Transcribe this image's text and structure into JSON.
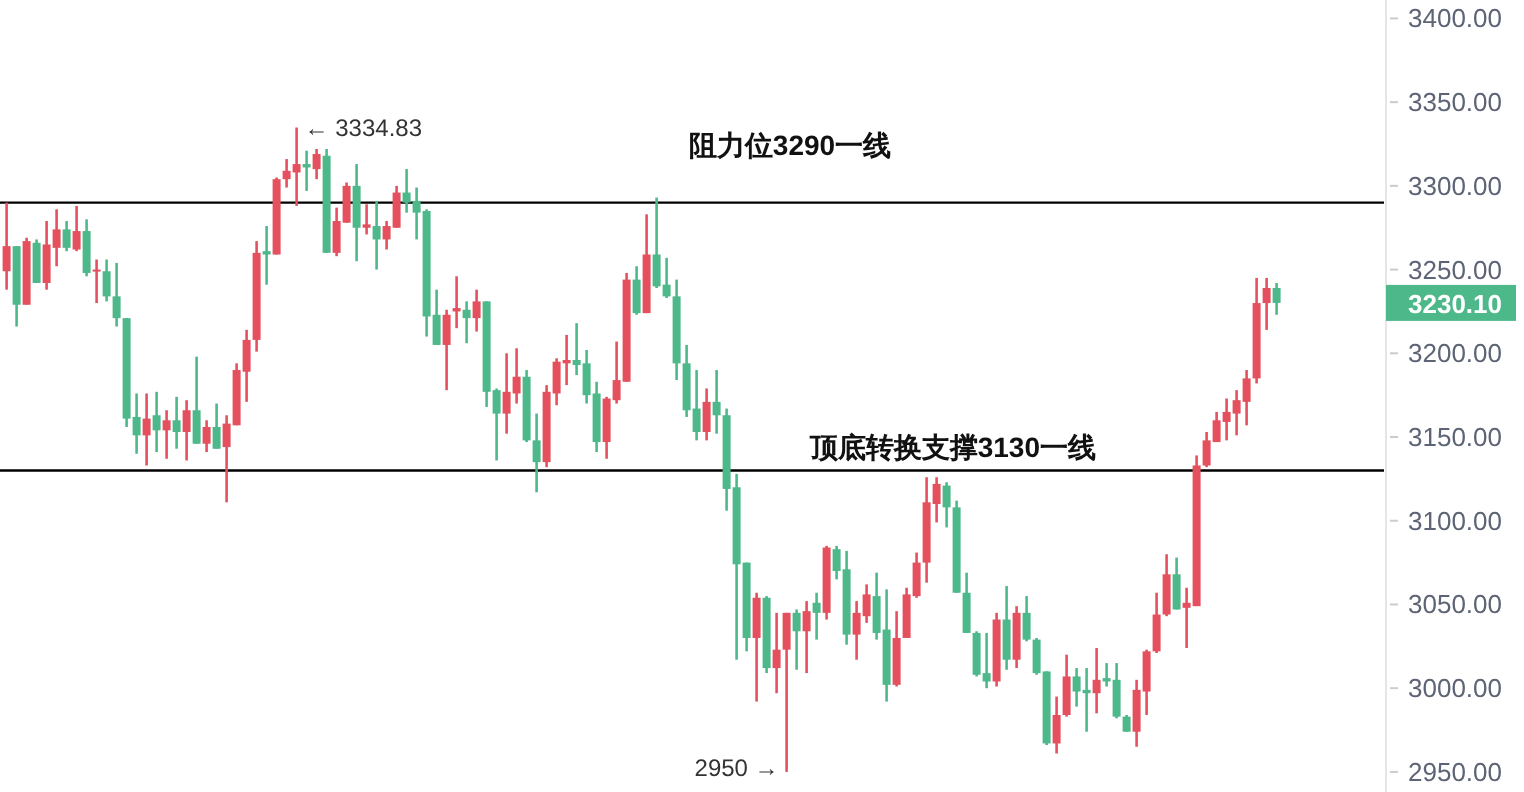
{
  "chart_data": {
    "type": "candlestick",
    "categories": [
      null,
      null,
      null,
      null,
      null,
      null,
      null,
      null,
      null,
      null,
      null,
      null,
      null,
      null,
      null,
      null,
      null,
      null,
      null,
      null,
      null,
      null,
      null,
      null,
      null,
      null,
      null,
      null,
      null,
      null,
      null,
      null,
      null,
      null,
      null,
      null,
      null,
      null,
      null,
      null,
      null,
      null,
      null,
      null,
      null,
      null,
      null,
      null,
      null,
      null,
      null,
      null,
      null,
      null,
      null,
      null,
      null,
      null,
      null,
      null,
      null,
      null,
      null,
      null,
      null,
      null,
      null,
      null,
      null,
      null,
      null,
      null,
      null,
      null,
      null,
      null,
      null,
      null,
      null,
      null,
      null,
      null,
      null,
      null,
      null,
      null,
      null,
      null,
      null,
      null,
      null,
      null,
      null,
      null,
      null,
      null,
      null,
      null,
      null,
      null,
      null,
      null,
      null,
      null,
      null,
      null,
      null,
      null,
      null,
      null,
      null,
      null,
      null,
      null,
      null,
      null,
      null,
      null,
      null,
      null,
      null,
      null,
      null,
      null,
      null,
      null,
      null,
      null
    ],
    "ohlc": [
      [
        3249,
        3290,
        3238,
        3264
      ],
      [
        3264,
        3264,
        3216,
        3229
      ],
      [
        3229,
        3269,
        3229,
        3267
      ],
      [
        3266,
        3268,
        3242,
        3242
      ],
      [
        3242,
        3279,
        3238,
        3265
      ],
      [
        3263,
        3286,
        3252,
        3274
      ],
      [
        3274,
        3279,
        3261,
        3263
      ],
      [
        3262,
        3288,
        3261,
        3273
      ],
      [
        3273,
        3280,
        3246,
        3248
      ],
      [
        3249,
        3256,
        3230,
        3250
      ],
      [
        3249,
        3256,
        3231,
        3234
      ],
      [
        3234,
        3254,
        3216,
        3221
      ],
      [
        3221,
        3221,
        3156,
        3161
      ],
      [
        3162,
        3176,
        3140,
        3151
      ],
      [
        3151,
        3176,
        3133,
        3161
      ],
      [
        3163,
        3177,
        3141,
        3154
      ],
      [
        3154,
        3166,
        3137,
        3160
      ],
      [
        3160,
        3174,
        3143,
        3153
      ],
      [
        3153,
        3172,
        3136,
        3166
      ],
      [
        3166,
        3198,
        3146,
        3146
      ],
      [
        3146,
        3160,
        3141,
        3156
      ],
      [
        3156,
        3170,
        3143,
        3143
      ],
      [
        3144,
        3163,
        3111,
        3158
      ],
      [
        3157,
        3194,
        3157,
        3190
      ],
      [
        3189,
        3214,
        3171,
        3208
      ],
      [
        3208,
        3267,
        3201,
        3260
      ],
      [
        3261,
        3276,
        3241,
        3259
      ],
      [
        3259,
        3305,
        3259,
        3304
      ],
      [
        3304,
        3316,
        3299,
        3309
      ],
      [
        3308,
        3334.83,
        3288,
        3313
      ],
      [
        3313,
        3321,
        3297,
        3311
      ],
      [
        3310,
        3322,
        3304,
        3319
      ],
      [
        3318,
        3322,
        3260,
        3260
      ],
      [
        3260,
        3287,
        3258,
        3279
      ],
      [
        3278,
        3302,
        3278,
        3300
      ],
      [
        3300,
        3313,
        3255,
        3275
      ],
      [
        3275,
        3289,
        3271,
        3277
      ],
      [
        3276,
        3291,
        3250,
        3268
      ],
      [
        3268,
        3279,
        3262,
        3276
      ],
      [
        3275,
        3300,
        3275,
        3296
      ],
      [
        3296,
        3310,
        3284,
        3290
      ],
      [
        3291,
        3299,
        3268,
        3284
      ],
      [
        3285,
        3286,
        3210,
        3222
      ],
      [
        3223,
        3238,
        3205,
        3205
      ],
      [
        3205,
        3226,
        3178,
        3223
      ],
      [
        3225,
        3246,
        3215,
        3227
      ],
      [
        3226,
        3231,
        3206,
        3221
      ],
      [
        3221,
        3238,
        3213,
        3231
      ],
      [
        3231,
        3231,
        3168,
        3177
      ],
      [
        3178,
        3179,
        3136,
        3164
      ],
      [
        3164,
        3200,
        3152,
        3177
      ],
      [
        3176,
        3203,
        3170,
        3186
      ],
      [
        3186,
        3190,
        3147,
        3148
      ],
      [
        3148,
        3164,
        3117,
        3135
      ],
      [
        3135,
        3181,
        3132,
        3177
      ],
      [
        3176,
        3197,
        3169,
        3195
      ],
      [
        3194,
        3211,
        3181,
        3196
      ],
      [
        3196,
        3218,
        3187,
        3193
      ],
      [
        3194,
        3202,
        3170,
        3175
      ],
      [
        3176,
        3183,
        3141,
        3147
      ],
      [
        3147,
        3174,
        3137,
        3173
      ],
      [
        3172,
        3207,
        3170,
        3184
      ],
      [
        3183,
        3248,
        3183,
        3244
      ],
      [
        3244,
        3252,
        3223,
        3224
      ],
      [
        3224,
        3283,
        3224,
        3259
      ],
      [
        3259,
        3293,
        3239,
        3240
      ],
      [
        3241,
        3257,
        3233,
        3234
      ],
      [
        3234,
        3244,
        3184,
        3194
      ],
      [
        3194,
        3205,
        3162,
        3166
      ],
      [
        3167,
        3190,
        3148,
        3153
      ],
      [
        3153,
        3179,
        3148,
        3171
      ],
      [
        3171,
        3190,
        3152,
        3163
      ],
      [
        3163,
        3167,
        3106,
        3119
      ],
      [
        3120,
        3128,
        3017,
        3074
      ],
      [
        3075,
        3075,
        3022,
        3030
      ],
      [
        3030,
        3057,
        2992,
        3054
      ],
      [
        3054,
        3055,
        3009,
        3012
      ],
      [
        3012,
        3045,
        2997,
        3023
      ],
      [
        3023,
        3045,
        2950,
        3045
      ],
      [
        3045,
        3047,
        3011,
        3034
      ],
      [
        3034,
        3052,
        3009,
        3046
      ],
      [
        3051,
        3057,
        3029,
        3045
      ],
      [
        3045,
        3085,
        3041,
        3084
      ],
      [
        3083,
        3085,
        3065,
        3070
      ],
      [
        3071,
        3082,
        3026,
        3032
      ],
      [
        3032,
        3052,
        3017,
        3045
      ],
      [
        3043,
        3062,
        3039,
        3056
      ],
      [
        3055,
        3069,
        3029,
        3033
      ],
      [
        3035,
        3059,
        2992,
        3002
      ],
      [
        3002,
        3046,
        3001,
        3030
      ],
      [
        3030,
        3060,
        3030,
        3056
      ],
      [
        3055,
        3081,
        3054,
        3075
      ],
      [
        3075,
        3126,
        3063,
        3111
      ],
      [
        3110,
        3126,
        3099,
        3122
      ],
      [
        3121,
        3123,
        3096,
        3108
      ],
      [
        3108,
        3112,
        3057,
        3057
      ],
      [
        3057,
        3069,
        3033,
        3033
      ],
      [
        3033,
        3034,
        3007,
        3008
      ],
      [
        3009,
        3033,
        3000,
        3004
      ],
      [
        3004,
        3045,
        3001,
        3041
      ],
      [
        3041,
        3061,
        3011,
        3017
      ],
      [
        3017,
        3049,
        3012,
        3045
      ],
      [
        3045,
        3055,
        3028,
        3029
      ],
      [
        3029,
        3030,
        3008,
        3009
      ],
      [
        3010,
        3010,
        2966,
        2967
      ],
      [
        2967,
        2995,
        2961,
        2984
      ],
      [
        2984,
        3020,
        2983,
        3007
      ],
      [
        3007,
        3012,
        2989,
        2998
      ],
      [
        2999,
        3012,
        2974,
        2997
      ],
      [
        2997,
        3024,
        2985,
        3005
      ],
      [
        3006,
        3015,
        3001,
        3004
      ],
      [
        3005,
        3015,
        2982,
        2983
      ],
      [
        2983,
        2984,
        2974,
        2974
      ],
      [
        2974,
        3005,
        2965,
        2999
      ],
      [
        2998,
        3023,
        2984,
        3022
      ],
      [
        3022,
        3057,
        3021,
        3044
      ],
      [
        3044,
        3080,
        3043,
        3068
      ],
      [
        3068,
        3078,
        3047,
        3047
      ],
      [
        3048,
        3060,
        3024,
        3051
      ],
      [
        3049,
        3139,
        3049,
        3133
      ],
      [
        3133,
        3153,
        3132,
        3148
      ],
      [
        3147,
        3165,
        3147,
        3160
      ],
      [
        3159,
        3173,
        3148,
        3165
      ],
      [
        3164,
        3178,
        3151,
        3172
      ],
      [
        3171,
        3190,
        3157,
        3185
      ],
      [
        3185,
        3245,
        3182,
        3230
      ],
      [
        3230,
        3245,
        3214,
        3239
      ],
      [
        3239,
        3242,
        3223,
        3230.1
      ]
    ],
    "colors": [
      "#e5505e",
      "#4db88a",
      "#e5505e",
      "#4db88a",
      "#e5505e",
      "#e5505e",
      "#4db88a",
      "#e5505e",
      "#4db88a",
      "#e5505e",
      "#4db88a",
      "#4db88a",
      "#4db88a",
      "#4db88a",
      "#e5505e",
      "#4db88a",
      "#e5505e",
      "#4db88a",
      "#e5505e",
      "#4db88a",
      "#e5505e",
      "#4db88a",
      "#e5505e",
      "#e5505e",
      "#e5505e",
      "#e5505e",
      "#4db88a",
      "#e5505e",
      "#e5505e",
      "#e5505e",
      "#4db88a",
      "#e5505e",
      "#4db88a",
      "#e5505e",
      "#e5505e",
      "#4db88a",
      "#e5505e",
      "#4db88a",
      "#e5505e",
      "#e5505e",
      "#4db88a",
      "#4db88a",
      "#4db88a",
      "#4db88a",
      "#e5505e",
      "#e5505e",
      "#4db88a",
      "#e5505e",
      "#4db88a",
      "#4db88a",
      "#e5505e",
      "#e5505e",
      "#4db88a",
      "#4db88a",
      "#e5505e",
      "#e5505e",
      "#e5505e",
      "#4db88a",
      "#4db88a",
      "#4db88a",
      "#e5505e",
      "#e5505e",
      "#e5505e",
      "#4db88a",
      "#e5505e",
      "#4db88a",
      "#4db88a",
      "#4db88a",
      "#4db88a",
      "#4db88a",
      "#e5505e",
      "#4db88a",
      "#4db88a",
      "#4db88a",
      "#4db88a",
      "#e5505e",
      "#4db88a",
      "#e5505e",
      "#e5505e",
      "#4db88a",
      "#e5505e",
      "#4db88a",
      "#e5505e",
      "#4db88a",
      "#4db88a",
      "#e5505e",
      "#e5505e",
      "#4db88a",
      "#4db88a",
      "#e5505e",
      "#e5505e",
      "#e5505e",
      "#e5505e",
      "#e5505e",
      "#4db88a",
      "#4db88a",
      "#4db88a",
      "#4db88a",
      "#4db88a",
      "#e5505e",
      "#4db88a",
      "#e5505e",
      "#4db88a",
      "#4db88a",
      "#4db88a",
      "#e5505e",
      "#e5505e",
      "#4db88a",
      "#4db88a",
      "#e5505e",
      "#4db88a",
      "#4db88a",
      "#4db88a",
      "#e5505e",
      "#e5505e",
      "#e5505e",
      "#e5505e",
      "#4db88a",
      "#e5505e",
      "#e5505e",
      "#e5505e",
      "#e5505e",
      "#e5505e",
      "#e5505e",
      "#e5505e",
      "#e5505e",
      "#e5505e",
      "#4db88a"
    ],
    "ylim": [
      2938,
      3411
    ],
    "yticks": [
      {
        "value": 2950,
        "label": "2950.00"
      },
      {
        "value": 3000,
        "label": "3000.00"
      },
      {
        "value": 3050,
        "label": "3050.00"
      },
      {
        "value": 3100,
        "label": "3100.00"
      },
      {
        "value": 3150,
        "label": "3150.00"
      },
      {
        "value": 3200,
        "label": "3200.00"
      },
      {
        "value": 3250,
        "label": "3250.00"
      },
      {
        "value": 3300,
        "label": "3300.00"
      },
      {
        "value": 3350,
        "label": "3350.00"
      },
      {
        "value": 3400,
        "label": "3400.00"
      }
    ],
    "tick_labels": "y",
    "grid": false,
    "ref_lines": [
      {
        "axis": "y",
        "value": 3290,
        "label": "阻力位3290一线",
        "color": "#000000"
      },
      {
        "axis": "y",
        "value": 3130,
        "label": "顶底转换支撑3130一线",
        "color": "#000000"
      }
    ],
    "annotations": [
      "← 3334.83",
      "2950 →",
      "3230.10"
    ]
  }
}
